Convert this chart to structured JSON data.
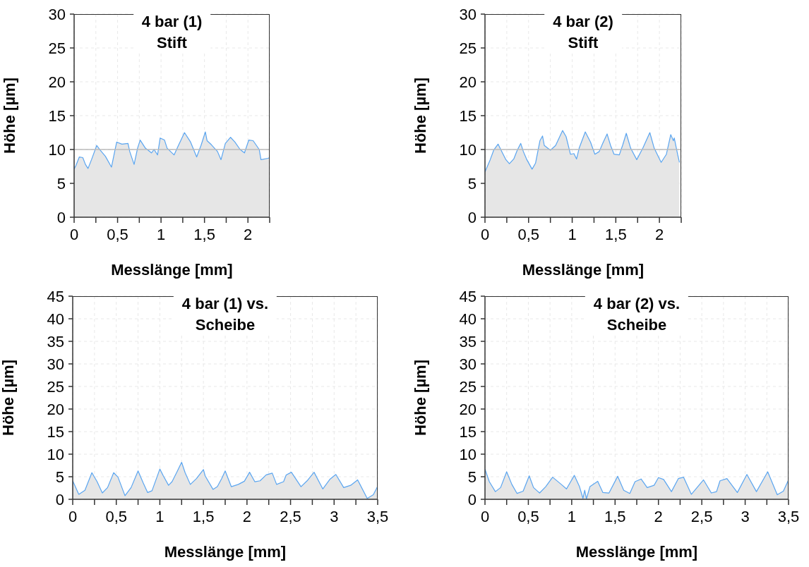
{
  "chart_data": [
    {
      "type": "area",
      "title": "4 bar (1)\nStift",
      "xlabel": "Messlänge [mm]",
      "ylabel": "Höhe [µm]",
      "color": "#5aa5f0",
      "grid": true,
      "xlim": [
        0,
        2.25
      ],
      "ylim": [
        0,
        30
      ],
      "xticks": [
        0,
        {
          "value": 0.25,
          "label": null
        },
        "0,5",
        {
          "value": 0.75,
          "label": null
        },
        1,
        {
          "value": 1.25,
          "label": null
        },
        "1,5",
        {
          "value": 1.75,
          "label": null
        },
        2,
        {
          "value": 2.25,
          "label": null
        }
      ],
      "yticks": [
        0,
        5,
        10,
        15,
        20,
        25,
        30
      ],
      "ref_lines": [
        {
          "axis": "y",
          "value": 10,
          "color": "#bbbbbb"
        }
      ],
      "x": [
        0,
        0.02,
        0.06,
        0.1,
        0.13,
        0.16,
        0.2,
        0.26,
        0.3,
        0.36,
        0.43,
        0.47,
        0.49,
        0.55,
        0.62,
        0.64,
        0.69,
        0.73,
        0.76,
        0.82,
        0.89,
        0.92,
        0.96,
        0.99,
        1.04,
        1.07,
        1.15,
        1.2,
        1.27,
        1.34,
        1.41,
        1.46,
        1.51,
        1.53,
        1.58,
        1.65,
        1.69,
        1.74,
        1.8,
        1.85,
        1.91,
        1.96,
        2.01,
        2.06,
        2.13,
        2.15,
        2.23,
        2.25
      ],
      "values": [
        7.1,
        7.6,
        8.9,
        8.8,
        7.8,
        7.2,
        8.5,
        10.6,
        9.9,
        9.0,
        7.4,
        9.9,
        11.1,
        10.8,
        10.9,
        9.7,
        7.8,
        10.2,
        11.4,
        10.2,
        9.5,
        10.0,
        9.2,
        11.7,
        11.4,
        10.2,
        9.2,
        10.6,
        12.5,
        11.1,
        8.9,
        10.6,
        12.6,
        11.3,
        10.7,
        9.7,
        8.5,
        10.9,
        11.8,
        11.1,
        10.0,
        9.5,
        11.4,
        11.3,
        10.0,
        8.5,
        8.7,
        8.8
      ]
    },
    {
      "type": "area",
      "title": "4 bar (2)\nStift",
      "xlabel": "Messlänge [mm]",
      "ylabel": "Höhe [µm]",
      "color": "#5aa5f0",
      "grid": true,
      "xlim": [
        0,
        2.25
      ],
      "ylim": [
        0,
        30
      ],
      "xticks": [
        0,
        {
          "value": 0.25,
          "label": null
        },
        "0,5",
        {
          "value": 0.75,
          "label": null
        },
        1,
        {
          "value": 1.25,
          "label": null
        },
        "1,5",
        {
          "value": 1.75,
          "label": null
        },
        2,
        {
          "value": 2.25,
          "label": null
        }
      ],
      "yticks": [
        0,
        5,
        10,
        15,
        20,
        25,
        30
      ],
      "ref_lines": [
        {
          "axis": "y",
          "value": 10,
          "color": "#bbbbbb"
        }
      ],
      "x": [
        0,
        0.06,
        0.1,
        0.15,
        0.2,
        0.24,
        0.28,
        0.33,
        0.37,
        0.41,
        0.44,
        0.48,
        0.54,
        0.58,
        0.63,
        0.66,
        0.68,
        0.75,
        0.81,
        0.89,
        0.93,
        0.98,
        1.02,
        1.05,
        1.08,
        1.15,
        1.21,
        1.26,
        1.31,
        1.35,
        1.4,
        1.44,
        1.48,
        1.54,
        1.58,
        1.62,
        1.67,
        1.74,
        1.81,
        1.89,
        1.94,
        2.02,
        2.08,
        2.13,
        2.16,
        2.17,
        2.21,
        2.23
      ],
      "values": [
        6.7,
        8.5,
        9.9,
        10.8,
        9.5,
        8.5,
        7.9,
        8.6,
        9.9,
        10.9,
        9.7,
        8.5,
        7.1,
        8.0,
        11.3,
        12.0,
        10.6,
        9.9,
        10.6,
        12.8,
        11.9,
        9.3,
        9.4,
        8.6,
        10.2,
        12.6,
        11.1,
        9.3,
        9.7,
        10.9,
        12.3,
        10.6,
        9.3,
        9.2,
        10.7,
        12.4,
        10.2,
        8.5,
        10.2,
        12.5,
        10.2,
        8.1,
        9.3,
        12.2,
        11.3,
        11.7,
        9.2,
        8.1
      ]
    },
    {
      "type": "area",
      "title": "4 bar (1) vs.\nScheibe",
      "xlabel": "Messlänge [mm]",
      "ylabel": "Höhe [µm]",
      "color": "#5aa5f0",
      "grid": true,
      "xlim": [
        0,
        3.5
      ],
      "ylim": [
        0,
        45
      ],
      "xticks": [
        0,
        {
          "value": 0.25,
          "label": null
        },
        "0,5",
        {
          "value": 0.75,
          "label": null
        },
        1,
        {
          "value": 1.25,
          "label": null
        },
        "1,5",
        {
          "value": 1.75,
          "label": null
        },
        2,
        {
          "value": 2.25,
          "label": null
        },
        "2,5",
        {
          "value": 2.75,
          "label": null
        },
        3,
        {
          "value": 3.25,
          "label": null
        },
        "3,5"
      ],
      "yticks": [
        0,
        5,
        10,
        15,
        20,
        25,
        30,
        35,
        40,
        45
      ],
      "x": [
        0,
        0.07,
        0.14,
        0.22,
        0.28,
        0.34,
        0.4,
        0.47,
        0.52,
        0.6,
        0.67,
        0.75,
        0.81,
        0.86,
        0.91,
        1.0,
        1.04,
        1.1,
        1.14,
        1.2,
        1.25,
        1.29,
        1.35,
        1.42,
        1.5,
        1.52,
        1.61,
        1.66,
        1.71,
        1.75,
        1.82,
        1.9,
        1.97,
        2.03,
        2.09,
        2.15,
        2.22,
        2.29,
        2.34,
        2.42,
        2.45,
        2.51,
        2.62,
        2.69,
        2.77,
        2.87,
        2.95,
        3.02,
        3.11,
        3.19,
        3.27,
        3.38,
        3.45,
        3.5
      ],
      "values": [
        4.1,
        1.1,
        2.0,
        5.9,
        3.9,
        1.4,
        2.6,
        5.9,
        4.9,
        0.8,
        2.6,
        6.3,
        3.6,
        1.5,
        1.9,
        6.7,
        5.2,
        3.1,
        3.9,
        6.2,
        8.2,
        5.9,
        3.3,
        4.6,
        6.6,
        5.2,
        2.2,
        2.8,
        4.6,
        6.3,
        2.8,
        3.3,
        4.0,
        6.0,
        3.9,
        4.1,
        5.4,
        5.8,
        3.3,
        3.9,
        5.4,
        6.0,
        2.8,
        4.1,
        6.0,
        2.3,
        4.4,
        5.5,
        2.6,
        3.1,
        4.3,
        0.2,
        1.0,
        2.9
      ]
    },
    {
      "type": "area",
      "title": "4 bar (2) vs.\nScheibe",
      "xlabel": "Messlänge [mm]",
      "ylabel": "Höhe [µm]",
      "color": "#5aa5f0",
      "grid": true,
      "xlim": [
        0,
        3.5
      ],
      "ylim": [
        0,
        45
      ],
      "xticks": [
        0,
        {
          "value": 0.25,
          "label": null
        },
        "0,5",
        {
          "value": 0.75,
          "label": null
        },
        1,
        {
          "value": 1.25,
          "label": null
        },
        "1,5",
        {
          "value": 1.75,
          "label": null
        },
        2,
        {
          "value": 2.25,
          "label": null
        },
        "2,5",
        {
          "value": 2.75,
          "label": null
        },
        3,
        {
          "value": 3.25,
          "label": null
        },
        "3,5"
      ],
      "yticks": [
        0,
        5,
        10,
        15,
        20,
        25,
        30,
        35,
        40,
        45
      ],
      "x": [
        0,
        0.05,
        0.12,
        0.18,
        0.25,
        0.31,
        0.37,
        0.44,
        0.51,
        0.56,
        0.63,
        0.7,
        0.78,
        0.88,
        0.94,
        1.03,
        1.09,
        1.13,
        1.15,
        1.17,
        1.21,
        1.3,
        1.36,
        1.43,
        1.53,
        1.6,
        1.67,
        1.73,
        1.8,
        1.87,
        1.95,
        2.0,
        2.06,
        2.15,
        2.23,
        2.29,
        2.38,
        2.52,
        2.61,
        2.67,
        2.71,
        2.79,
        2.91,
        3.02,
        3.13,
        3.26,
        3.37,
        3.44,
        3.5
      ],
      "values": [
        6.7,
        3.9,
        1.7,
        2.6,
        6.1,
        3.3,
        1.3,
        1.8,
        5.2,
        2.6,
        1.4,
        2.8,
        4.9,
        3.3,
        2.3,
        5.3,
        2.8,
        0.2,
        2.0,
        0.1,
        2.8,
        4.0,
        1.5,
        1.4,
        5.1,
        2.0,
        1.3,
        3.9,
        4.5,
        2.6,
        3.1,
        4.8,
        4.4,
        1.7,
        4.6,
        4.9,
        1.1,
        4.3,
        1.4,
        1.7,
        4.1,
        4.6,
        1.5,
        5.5,
        1.7,
        6.1,
        1.0,
        1.8,
        4.3
      ]
    }
  ]
}
